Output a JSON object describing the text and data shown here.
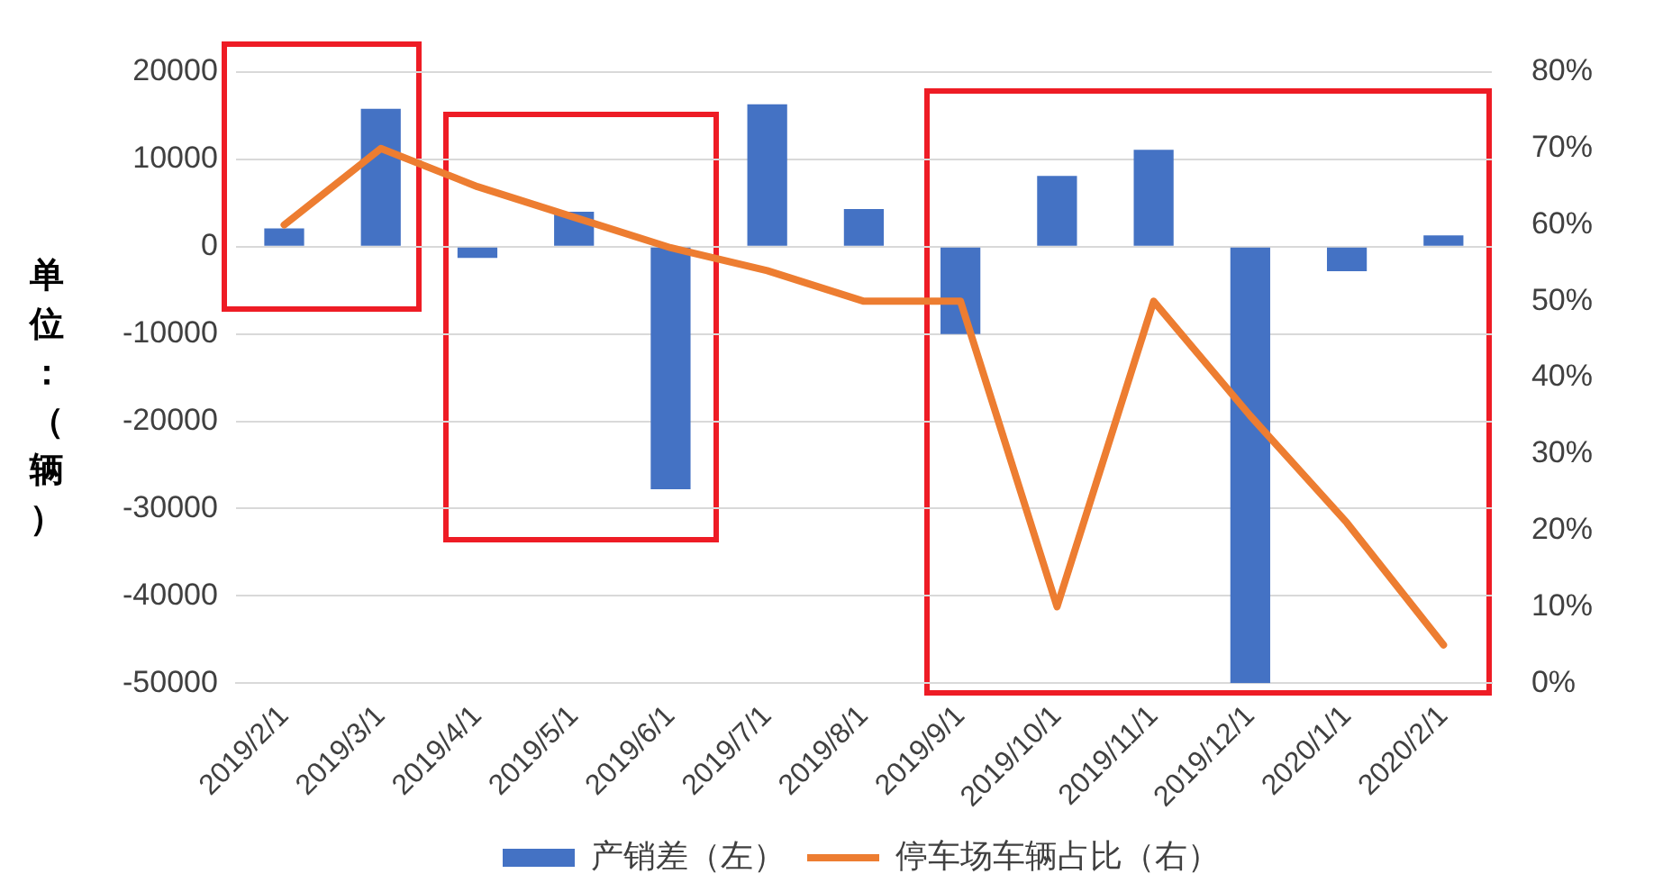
{
  "chart_data": {
    "type": "bar",
    "ylabel": "单位：（辆）",
    "categories": [
      "2019/2/1",
      "2019/3/1",
      "2019/4/1",
      "2019/5/1",
      "2019/6/1",
      "2019/7/1",
      "2019/8/1",
      "2019/9/1",
      "2019/10/1",
      "2019/11/1",
      "2019/12/1",
      "2020/1/1",
      "2020/2/1"
    ],
    "series": [
      {
        "name": "产销差（左）",
        "color": "#4472c4",
        "values": [
          2100,
          15800,
          -1300,
          4000,
          -27800,
          16300,
          4300,
          -10000,
          8100,
          11100,
          -50000,
          -2800,
          1300
        ]
      },
      {
        "name": "停车场车辆占比（右）",
        "type": "line",
        "axis": "y2",
        "color": "#ed7d31",
        "values": [
          60,
          70,
          65,
          61,
          57,
          54,
          50,
          50,
          10,
          50,
          35,
          21,
          5
        ]
      }
    ],
    "ylim": [
      -50000,
      20000
    ],
    "yticks": [
      -50000,
      -40000,
      -30000,
      -20000,
      -10000,
      0,
      10000,
      20000
    ],
    "y2lim": [
      0,
      80
    ],
    "y2ticks": [
      {
        "value": 0,
        "label": "0%"
      },
      {
        "value": 10,
        "label": "10%"
      },
      {
        "value": 20,
        "label": "20%"
      },
      {
        "value": 30,
        "label": "30%"
      },
      {
        "value": 40,
        "label": "40%"
      },
      {
        "value": 50,
        "label": "50%"
      },
      {
        "value": 60,
        "label": "60%"
      },
      {
        "value": 70,
        "label": "70%"
      },
      {
        "value": 80,
        "label": "80%"
      }
    ],
    "grid": "y",
    "legend": "bottom",
    "marker": "none",
    "line_style": "solid"
  }
}
